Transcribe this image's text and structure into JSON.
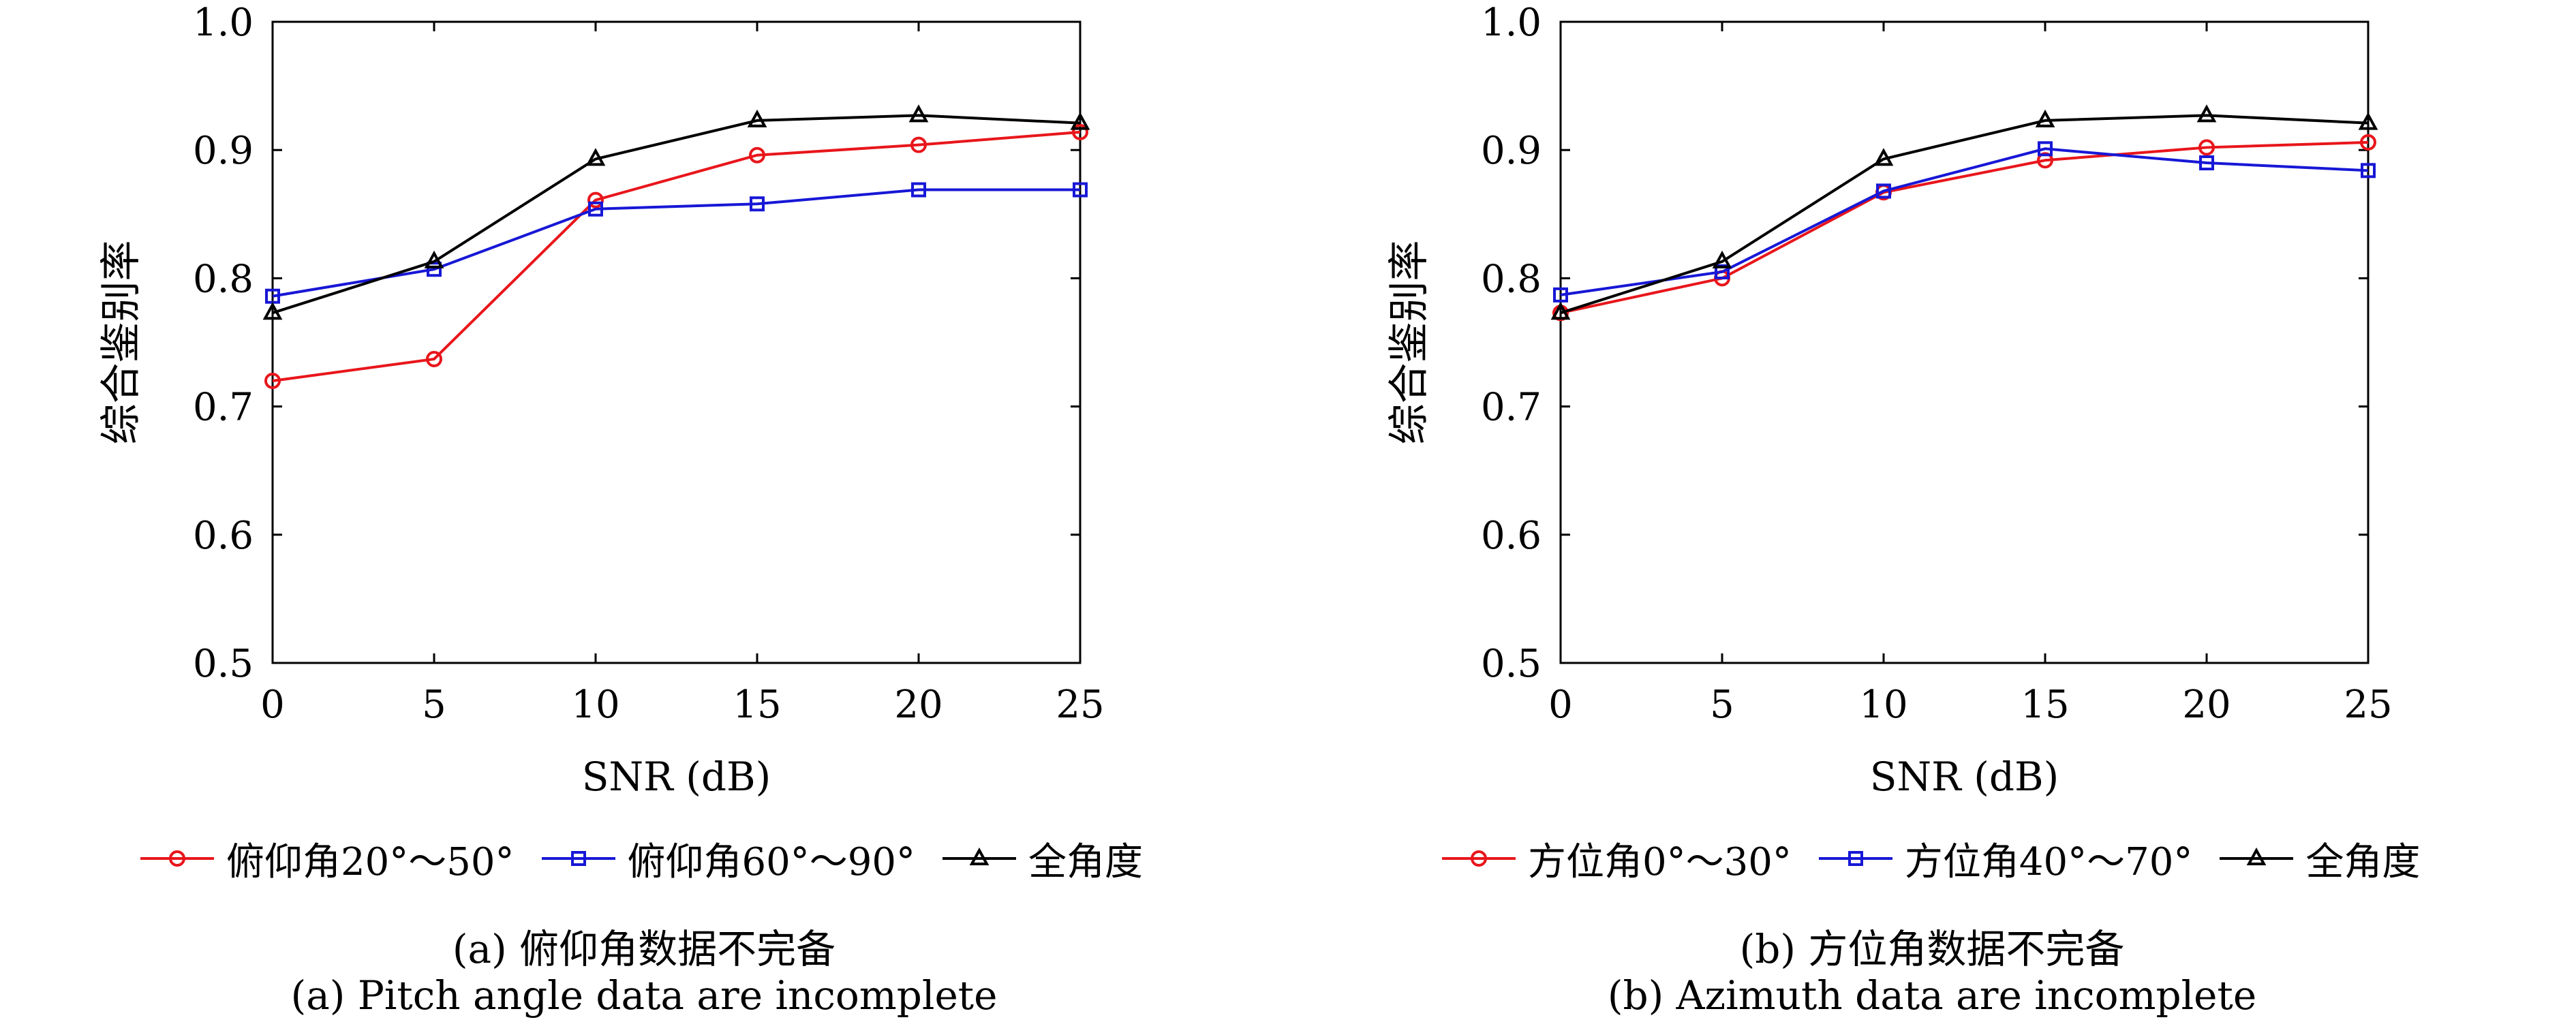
{
  "colors": {
    "red": "#e8161b",
    "blue": "#1717d6",
    "black": "#000000"
  },
  "chart_data": [
    {
      "type": "line",
      "title": "",
      "xlabel": "SNR (dB)",
      "ylabel": "综合鉴别率",
      "xlim": [
        0,
        25
      ],
      "ylim": [
        0.5,
        1.0
      ],
      "xticks": [
        0,
        5,
        10,
        15,
        20,
        25
      ],
      "yticks": [
        0.5,
        0.6,
        0.7,
        0.8,
        0.9,
        1.0
      ],
      "x": [
        0,
        5,
        10,
        15,
        20,
        25
      ],
      "grid": false,
      "legend_position": "bottom",
      "series": [
        {
          "name": "俯仰角20°～50°",
          "color": "#e8161b",
          "marker": "circle",
          "values": [
            0.72,
            0.737,
            0.861,
            0.896,
            0.904,
            0.914
          ]
        },
        {
          "name": "俯仰角60°～90°",
          "color": "#1717d6",
          "marker": "square",
          "values": [
            0.786,
            0.807,
            0.854,
            0.858,
            0.869,
            0.869
          ]
        },
        {
          "name": "全角度",
          "color": "#000000",
          "marker": "triangle",
          "values": [
            0.773,
            0.813,
            0.893,
            0.923,
            0.927,
            0.921
          ]
        }
      ],
      "caption_cn": "(a) 俯仰角数据不完备",
      "caption_en": "(a) Pitch angle data are incomplete"
    },
    {
      "type": "line",
      "title": "",
      "xlabel": "SNR (dB)",
      "ylabel": "综合鉴别率",
      "xlim": [
        0,
        25
      ],
      "ylim": [
        0.5,
        1.0
      ],
      "xticks": [
        0,
        5,
        10,
        15,
        20,
        25
      ],
      "yticks": [
        0.5,
        0.6,
        0.7,
        0.8,
        0.9,
        1.0
      ],
      "x": [
        0,
        5,
        10,
        15,
        20,
        25
      ],
      "grid": false,
      "legend_position": "bottom",
      "series": [
        {
          "name": "方位角0°～30°",
          "color": "#e8161b",
          "marker": "circle",
          "values": [
            0.773,
            0.8,
            0.867,
            0.892,
            0.902,
            0.906
          ]
        },
        {
          "name": "方位角40°～70°",
          "color": "#1717d6",
          "marker": "square",
          "values": [
            0.787,
            0.805,
            0.868,
            0.901,
            0.89,
            0.884
          ]
        },
        {
          "name": "全角度",
          "color": "#000000",
          "marker": "triangle",
          "values": [
            0.773,
            0.813,
            0.893,
            0.923,
            0.927,
            0.921
          ]
        }
      ],
      "caption_cn": "(b) 方位角数据不完备",
      "caption_en": "(b) Azimuth data are incomplete"
    }
  ]
}
